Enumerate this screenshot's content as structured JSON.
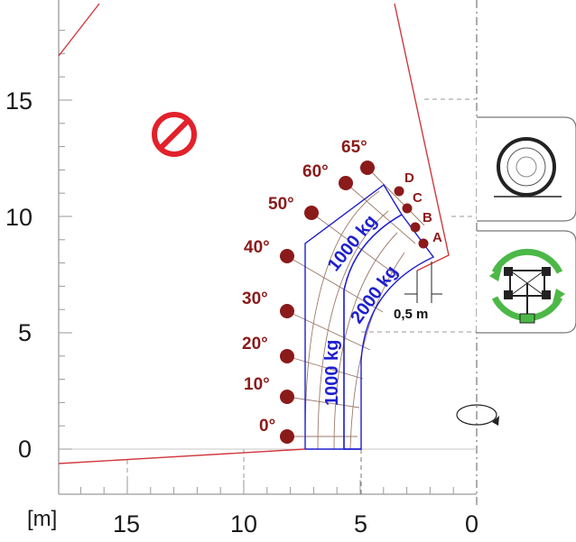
{
  "axes": {
    "unit": "[m]",
    "x_ticks": [
      {
        "label": "15",
        "value": 15
      },
      {
        "label": "10",
        "value": 10
      },
      {
        "label": "5",
        "value": 5
      },
      {
        "label": "0",
        "value": 0
      }
    ],
    "y_ticks": [
      {
        "label": "15",
        "value": 15
      },
      {
        "label": "10",
        "value": 10
      },
      {
        "label": "5",
        "value": 5
      },
      {
        "label": "0",
        "value": 0
      }
    ]
  },
  "angles": [
    {
      "label": "0°",
      "value": 0
    },
    {
      "label": "10°",
      "value": 10
    },
    {
      "label": "20°",
      "value": 20
    },
    {
      "label": "30°",
      "value": 30
    },
    {
      "label": "40°",
      "value": 40
    },
    {
      "label": "50°",
      "value": 50
    },
    {
      "label": "60°",
      "value": 60
    },
    {
      "label": "65°",
      "value": 65
    }
  ],
  "extensions": [
    "A",
    "B",
    "C",
    "D"
  ],
  "zones": [
    {
      "label": "1000 kg"
    },
    {
      "label": "2000 kg"
    },
    {
      "label": "1000 kg"
    }
  ],
  "dimension": {
    "label": "0,5 m"
  },
  "icons": {
    "prohibited": "no-entry-icon",
    "wheels": "tire-on-ground-icon",
    "stabilizers": "outriggers-rotation-icon",
    "rotation": "rotation-arrow-icon"
  },
  "colors": {
    "boundary": "#d0393f",
    "angle_marker": "#8b1a1a",
    "load_zone": "#1f1fd0",
    "prohibited": "#e3212b",
    "stabilizer_arrow": "#4cb847"
  }
}
